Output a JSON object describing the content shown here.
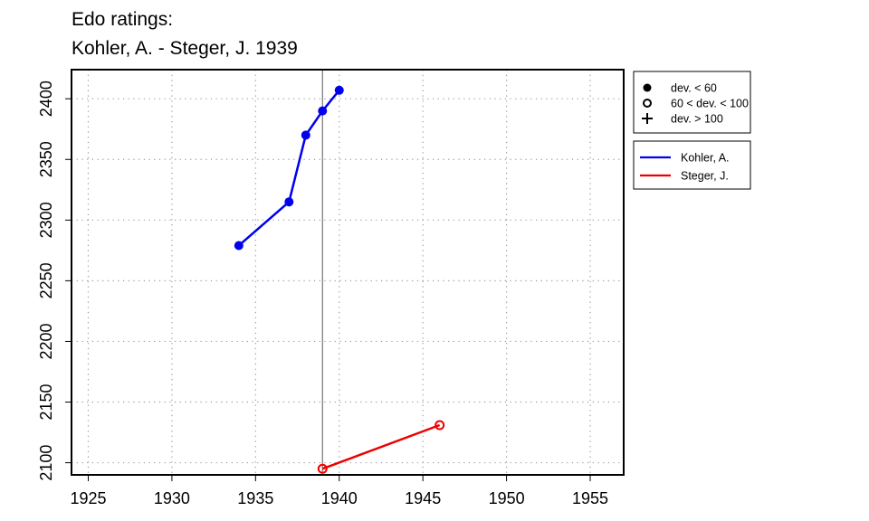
{
  "chart_data": {
    "type": "line",
    "title_lines": [
      "Edo ratings:",
      "Kohler, A. - Steger, J. 1939"
    ],
    "xlabel": "",
    "ylabel": "",
    "xlim": [
      1924,
      1957
    ],
    "ylim": [
      2090,
      2424
    ],
    "x_ticks": [
      1925,
      1930,
      1935,
      1940,
      1945,
      1950,
      1955
    ],
    "y_ticks": [
      2100,
      2150,
      2200,
      2250,
      2300,
      2350,
      2400
    ],
    "grid": true,
    "reference_line_x": 1939,
    "series": [
      {
        "name": "Kohler, A.",
        "color": "#0000ee",
        "points": [
          {
            "x": 1934,
            "y": 2279,
            "marker": "filled"
          },
          {
            "x": 1937,
            "y": 2315,
            "marker": "filled"
          },
          {
            "x": 1938,
            "y": 2370,
            "marker": "filled"
          },
          {
            "x": 1939,
            "y": 2390,
            "marker": "filled"
          },
          {
            "x": 1940,
            "y": 2407,
            "marker": "filled"
          }
        ]
      },
      {
        "name": "Steger, J.",
        "color": "#ee0000",
        "points": [
          {
            "x": 1939,
            "y": 2095,
            "marker": "open"
          },
          {
            "x": 1946,
            "y": 2131,
            "marker": "open"
          }
        ]
      }
    ],
    "marker_legend": [
      {
        "symbol": "filled",
        "label": "dev. < 60"
      },
      {
        "symbol": "open",
        "label": "60 < dev. < 100"
      },
      {
        "symbol": "plus",
        "label": "dev. > 100"
      }
    ],
    "legend_position": "right"
  }
}
